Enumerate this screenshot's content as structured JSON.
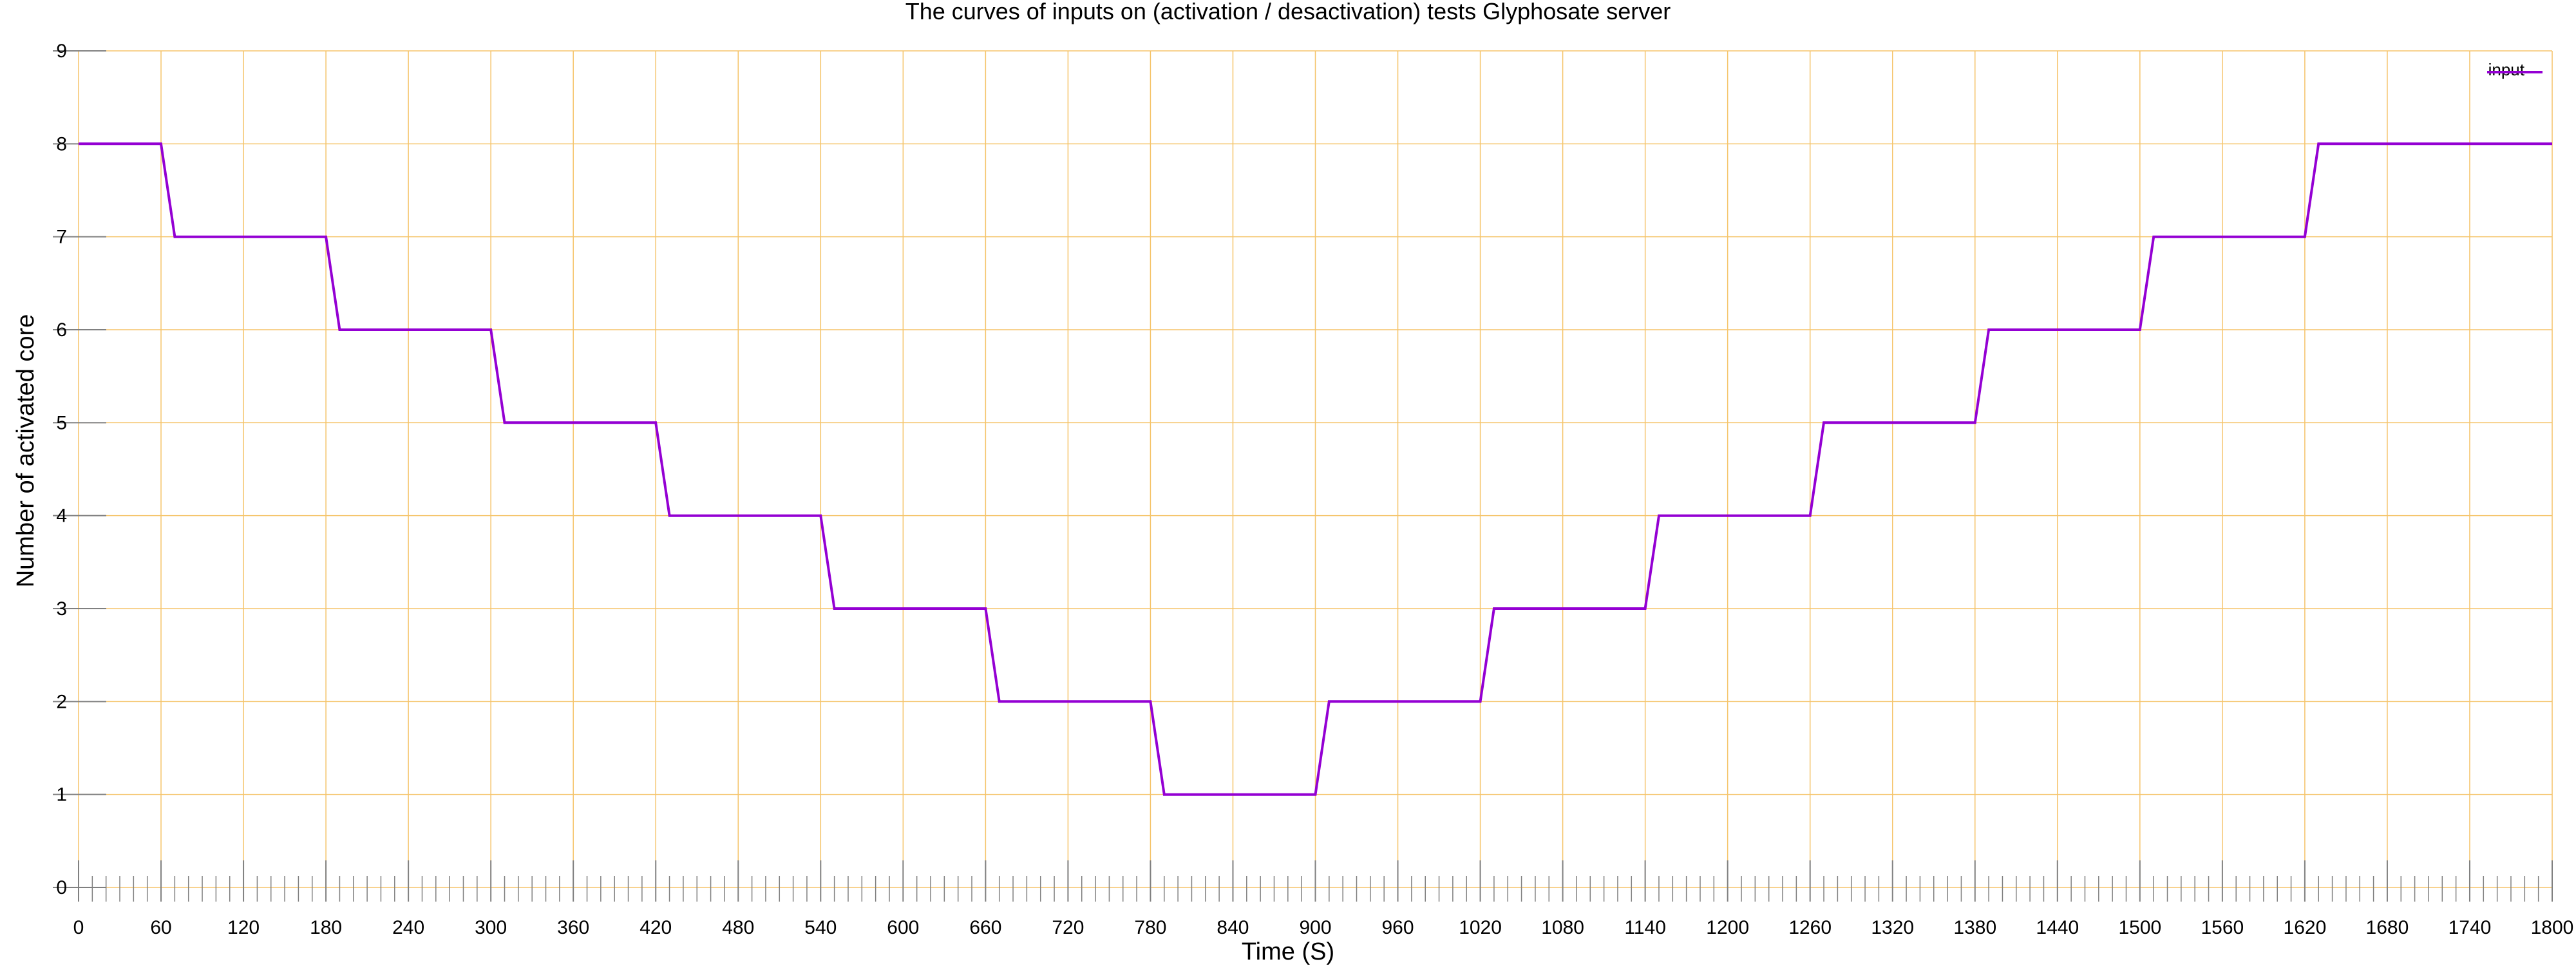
{
  "chart_data": {
    "type": "line",
    "title": "The curves of inputs on (activation / desactivation) tests Glyphosate server",
    "xlabel": "Time (S)",
    "ylabel": "Number of activated core",
    "xlim": [
      0,
      1800
    ],
    "ylim": [
      0,
      9
    ],
    "x_ticks": [
      0,
      60,
      120,
      180,
      240,
      300,
      360,
      420,
      480,
      540,
      600,
      660,
      720,
      780,
      840,
      900,
      960,
      1020,
      1080,
      1140,
      1200,
      1260,
      1320,
      1380,
      1440,
      1500,
      1560,
      1620,
      1680,
      1740,
      1800
    ],
    "x_tick_labels": [
      "0",
      "60",
      "120",
      "180",
      "240",
      "300",
      "360",
      "420",
      "480",
      "540",
      "600",
      "660",
      "720",
      "780",
      "840",
      "900",
      "960",
      "1020",
      "1080",
      "1140",
      "1200",
      "1260",
      "1320",
      "1380",
      "1440",
      "1500",
      "1560",
      "1620",
      "1680",
      "1740",
      "1800"
    ],
    "y_ticks": [
      0,
      1,
      2,
      3,
      4,
      5,
      6,
      7,
      8,
      9
    ],
    "y_tick_labels": [
      "0",
      "1",
      "2",
      "3",
      "4",
      "5",
      "6",
      "7",
      "8",
      "9"
    ],
    "grid": true,
    "grid_color": "#f5c46a",
    "legend_position": "top-right",
    "series": [
      {
        "name": "input",
        "color": "#9400d3",
        "x": [
          0,
          60,
          70,
          180,
          190,
          300,
          310,
          420,
          430,
          540,
          550,
          660,
          670,
          780,
          790,
          900,
          910,
          1020,
          1030,
          1140,
          1150,
          1260,
          1270,
          1380,
          1390,
          1500,
          1510,
          1620,
          1630,
          1800
        ],
        "y": [
          8,
          8,
          7,
          7,
          6,
          6,
          5,
          5,
          4,
          4,
          3,
          3,
          2,
          2,
          1,
          1,
          2,
          2,
          3,
          3,
          4,
          4,
          5,
          5,
          6,
          6,
          7,
          7,
          8,
          8
        ]
      }
    ]
  }
}
